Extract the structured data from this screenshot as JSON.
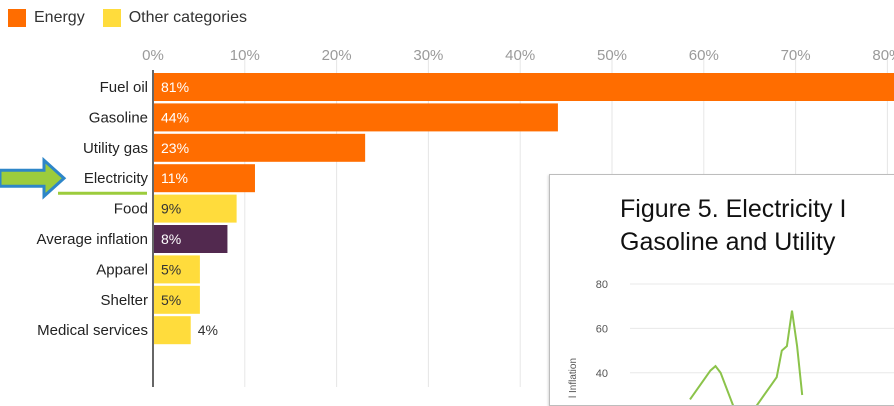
{
  "legend": {
    "items": [
      {
        "label": "Energy",
        "color": "#ff6d00"
      },
      {
        "label": "Other categories",
        "color": "#ffdc3c"
      }
    ]
  },
  "chart_data": [
    {
      "type": "bar",
      "orientation": "horizontal",
      "categories": [
        "Fuel oil",
        "Gasoline",
        "Utility gas",
        "Electricity",
        "Food",
        "Average inflation",
        "Apparel",
        "Shelter",
        "Medical services"
      ],
      "values": [
        81,
        44,
        23,
        11,
        9,
        8,
        5,
        5,
        4
      ],
      "value_labels": [
        "81%",
        "44%",
        "23%",
        "11%",
        "9%",
        "8%",
        "5%",
        "5%",
        "4%"
      ],
      "groups": [
        "Energy",
        "Energy",
        "Energy",
        "Energy",
        "Other categories",
        "Average inflation",
        "Other categories",
        "Other categories",
        "Other categories"
      ],
      "x_ticks": [
        "0%",
        "10%",
        "20%",
        "30%",
        "40%",
        "50%",
        "60%",
        "70%",
        "80%"
      ],
      "xlim": [
        0,
        80
      ],
      "grid": true,
      "legend_position": "top-left",
      "colors": {
        "Energy": "#ff6d00",
        "Other categories": "#ffdc3c",
        "Average inflation": "#52294f"
      },
      "highlight": {
        "category": "Electricity",
        "arrow_color": "#2e86c8",
        "arrow_fill": "#9ccc3c",
        "underline_color": "#9ccc3c"
      }
    },
    {
      "type": "line",
      "title": "Figure 5. Electricity I\nGasoline and Utility",
      "title_lines": [
        "Figure 5. Electricity I",
        "Gasoline and Utility"
      ],
      "y_ticks": [
        "80",
        "60",
        "40"
      ],
      "ylim": [
        20,
        80
      ],
      "ylabel": "l Inflation",
      "series_color": "#8bc34a",
      "visible_points": [
        [
          0,
          28
        ],
        [
          4,
          41
        ],
        [
          5,
          43
        ],
        [
          6,
          40
        ],
        [
          9,
          22
        ],
        [
          13,
          25
        ],
        [
          17,
          38
        ],
        [
          18,
          50
        ],
        [
          19,
          52
        ],
        [
          20,
          68
        ],
        [
          21,
          52
        ],
        [
          22,
          30
        ]
      ]
    }
  ]
}
